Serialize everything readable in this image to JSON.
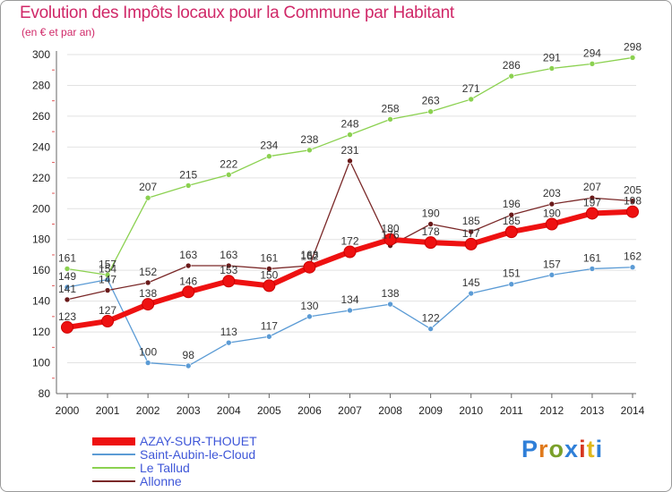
{
  "title": "Evolution des Impôts locaux pour la Commune par Habitant",
  "subtitle": "(en € et par an)",
  "logo": {
    "text": "Proxiti",
    "letter_colors": [
      "#2f7fd8",
      "#e07a1c",
      "#7aa02a",
      "#2f7fd8",
      "#d6371f",
      "#e0b81c",
      "#2f7fd8"
    ]
  },
  "chart_data": {
    "type": "line",
    "title": "Evolution des Impôts locaux pour la Commune par Habitant",
    "subtitle": "(en € et par an)",
    "xlabel": "",
    "ylabel": "",
    "x": [
      2000,
      2001,
      2002,
      2003,
      2004,
      2005,
      2006,
      2007,
      2008,
      2009,
      2010,
      2011,
      2012,
      2013,
      2014
    ],
    "ylim": [
      80,
      300
    ],
    "yticks": [
      80,
      100,
      120,
      140,
      160,
      180,
      200,
      220,
      240,
      260,
      280,
      300
    ],
    "grid": true,
    "legend_position": "bottom-left",
    "series": [
      {
        "name": "Saint-Aubin-le-Cloud",
        "color": "#5b9bd5",
        "values": [
          149,
          154,
          100,
          98,
          113,
          117,
          130,
          134,
          138,
          122,
          145,
          151,
          157,
          161,
          162
        ]
      },
      {
        "name": "Le Tallud",
        "color": "#8bd150",
        "values": [
          161,
          157,
          207,
          215,
          222,
          234,
          238,
          248,
          258,
          263,
          271,
          286,
          291,
          294,
          298
        ]
      },
      {
        "name": "Allonne",
        "color": "#7a2828",
        "values": [
          141,
          147,
          152,
          163,
          163,
          161,
          163,
          231,
          176,
          190,
          185,
          196,
          203,
          207,
          205
        ]
      },
      {
        "name": "AZAY-SUR-THOUET",
        "color": "#ee1111",
        "values": [
          123,
          127,
          138,
          146,
          153,
          150,
          162,
          172,
          180,
          178,
          177,
          185,
          190,
          197,
          198
        ]
      }
    ]
  }
}
